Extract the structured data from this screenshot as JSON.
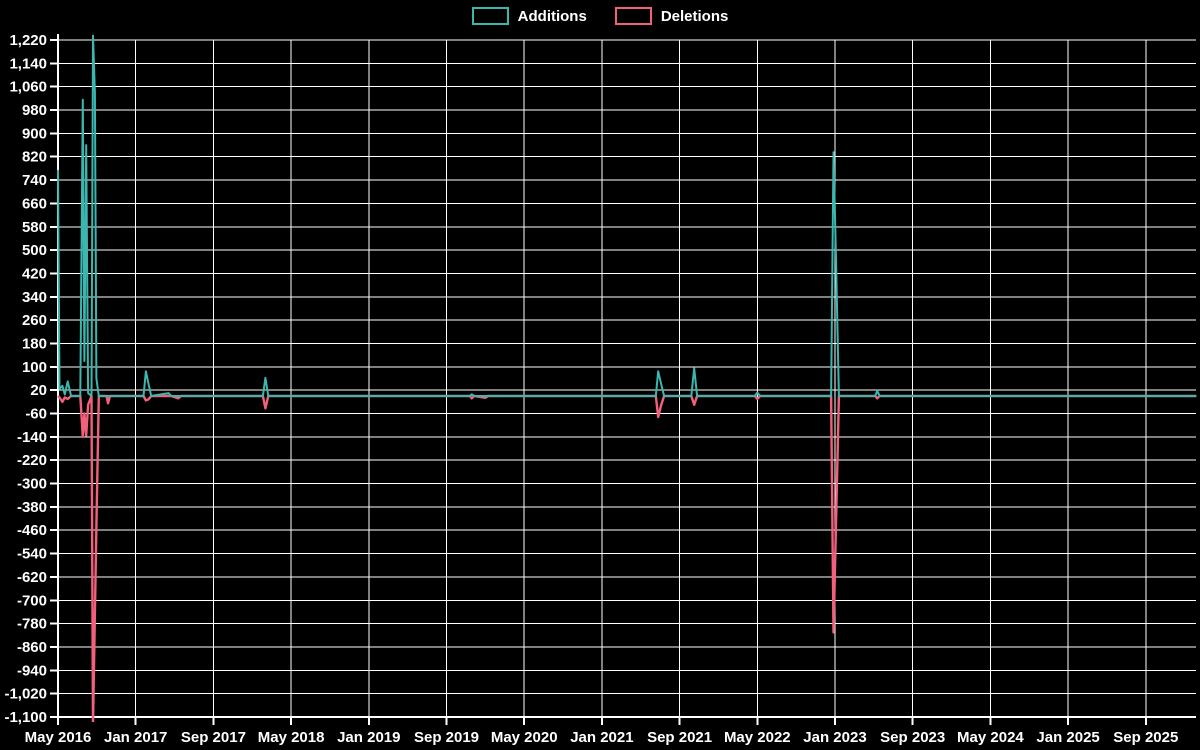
{
  "chart_data": {
    "type": "line",
    "title": "",
    "background_color": "#000000",
    "grid_color": "#ffffff",
    "text_color": "#ffffff",
    "legend_position": "top-center",
    "series": [
      {
        "name": "Additions",
        "color": "#3cb7b0"
      },
      {
        "name": "Deletions",
        "color": "#f2607b"
      }
    ],
    "x_axis": {
      "tick_labels": [
        "May 2016",
        "Jan 2017",
        "Sep 2017",
        "May 2018",
        "Jan 2019",
        "Sep 2019",
        "May 2020",
        "Jan 2021",
        "Sep 2021",
        "May 2022",
        "Jan 2023",
        "Sep 2023",
        "May 2024",
        "Jan 2025",
        "Sep 2025"
      ],
      "unit": "months since May 2016 (ticks every 8 months)"
    },
    "y_axis": {
      "min": -1100,
      "max": 1220,
      "step": 80,
      "tick_labels": [
        "1,220",
        "1,140",
        "1,060",
        "980",
        "900",
        "820",
        "740",
        "660",
        "580",
        "500",
        "420",
        "340",
        "260",
        "180",
        "100",
        "20",
        "-60",
        "-140",
        "-220",
        "-300",
        "-380",
        "-460",
        "-540",
        "-620",
        "-700",
        "-780",
        "-860",
        "-940",
        "-1,020",
        "-1,100"
      ]
    },
    "points_format": [
      "month_offset",
      "additions",
      "deletions"
    ],
    "points": [
      [
        0,
        775,
        0
      ],
      [
        0.15,
        25,
        -5
      ],
      [
        0.45,
        35,
        -20
      ],
      [
        0.7,
        5,
        -5
      ],
      [
        1.0,
        50,
        -10
      ],
      [
        1.35,
        0,
        0
      ],
      [
        2.3,
        0,
        0
      ],
      [
        2.55,
        1015,
        -140
      ],
      [
        2.72,
        120,
        -60
      ],
      [
        2.9,
        860,
        -135
      ],
      [
        3.1,
        10,
        -30
      ],
      [
        3.45,
        0,
        0
      ],
      [
        3.6,
        1235,
        -1130
      ],
      [
        3.8,
        1040,
        -745
      ],
      [
        3.95,
        60,
        -445
      ],
      [
        4.2,
        0,
        0
      ],
      [
        5.0,
        0,
        0
      ],
      [
        5.15,
        0,
        -25
      ],
      [
        5.35,
        0,
        0
      ],
      [
        8.8,
        0,
        0
      ],
      [
        9.05,
        85,
        -15
      ],
      [
        9.3,
        45,
        -12
      ],
      [
        9.6,
        0,
        0
      ],
      [
        11.4,
        10,
        0
      ],
      [
        11.65,
        0,
        0
      ],
      [
        12.4,
        0,
        -8
      ],
      [
        12.65,
        0,
        0
      ],
      [
        21.1,
        0,
        0
      ],
      [
        21.35,
        62,
        -42
      ],
      [
        21.65,
        0,
        0
      ],
      [
        42.4,
        0,
        0
      ],
      [
        42.6,
        6,
        -8
      ],
      [
        42.85,
        0,
        0
      ],
      [
        44.0,
        0,
        -6
      ],
      [
        44.25,
        0,
        0
      ],
      [
        61.55,
        0,
        0
      ],
      [
        61.8,
        85,
        -72
      ],
      [
        62.1,
        42,
        -32
      ],
      [
        62.4,
        0,
        0
      ],
      [
        65.2,
        0,
        0
      ],
      [
        65.5,
        95,
        -30
      ],
      [
        65.8,
        0,
        0
      ],
      [
        71.75,
        0,
        0
      ],
      [
        72.0,
        12,
        -10
      ],
      [
        72.3,
        0,
        0
      ],
      [
        79.6,
        0,
        0
      ],
      [
        79.85,
        835,
        -810
      ],
      [
        80.1,
        470,
        -440
      ],
      [
        80.4,
        0,
        0
      ],
      [
        84.15,
        0,
        0
      ],
      [
        84.35,
        18,
        -8
      ],
      [
        84.6,
        0,
        0
      ],
      [
        117.2,
        0,
        0
      ]
    ],
    "clipping_note": "Sep/Oct 2016 spikes exceed the axis range: additions clipped above 1,220 and deletions clipped below -1,100"
  }
}
